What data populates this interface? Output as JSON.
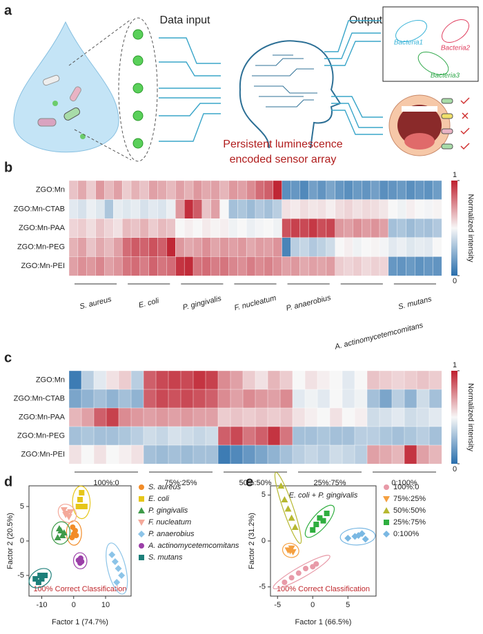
{
  "figure_a": {
    "label": "a",
    "data_input": "Data input",
    "output": "Output",
    "bacteria": [
      "Bacteria1",
      "Bacteria2",
      "Bacteria3"
    ],
    "caption": [
      "Persistent luminescence",
      "encoded sensor array"
    ]
  },
  "chart_data": [
    {
      "type": "heatmap",
      "label": "b",
      "rows": [
        "ZGO:Mn",
        "ZGO:Mn-CTAB",
        "ZGO:Mn-PAA",
        "ZGO:Mn-PEG",
        "ZGO:Mn-PEI"
      ],
      "groups": [
        "S. aureus",
        "E. coli",
        "P. gingivalis",
        "F. nucleatum",
        "P. anaerobius",
        "A. actinomycetemcomitans",
        "S. mutans"
      ],
      "values": [
        [
          0.62,
          0.68,
          0.6,
          0.72,
          0.64,
          0.7,
          0.6,
          0.66,
          0.62,
          0.7,
          0.68,
          0.64,
          0.7,
          0.66,
          0.72,
          0.68,
          0.7,
          0.65,
          0.72,
          0.7,
          0.75,
          0.82,
          0.85,
          0.98,
          0.12,
          0.15,
          0.1,
          0.18,
          0.14,
          0.2,
          0.15,
          0.12,
          0.16,
          0.14,
          0.18,
          0.12,
          0.14,
          0.16,
          0.12,
          0.15,
          0.13,
          0.17
        ],
        [
          0.45,
          0.42,
          0.47,
          0.44,
          0.32,
          0.46,
          0.44,
          0.46,
          0.42,
          0.45,
          0.43,
          0.47,
          0.72,
          0.96,
          0.86,
          0.62,
          0.7,
          0.5,
          0.3,
          0.32,
          0.28,
          0.33,
          0.3,
          0.35,
          0.55,
          0.53,
          0.56,
          0.54,
          0.55,
          0.52,
          0.56,
          0.58,
          0.55,
          0.57,
          0.56,
          0.54,
          0.5,
          0.48,
          0.52,
          0.5,
          0.49,
          0.51
        ],
        [
          0.58,
          0.6,
          0.56,
          0.62,
          0.58,
          0.55,
          0.64,
          0.62,
          0.66,
          0.6,
          0.64,
          0.62,
          0.5,
          0.52,
          0.5,
          0.53,
          0.51,
          0.52,
          0.48,
          0.5,
          0.47,
          0.49,
          0.5,
          0.48,
          0.88,
          0.92,
          0.9,
          0.94,
          0.89,
          0.91,
          0.72,
          0.7,
          0.74,
          0.71,
          0.73,
          0.7,
          0.3,
          0.32,
          0.28,
          0.31,
          0.3,
          0.33
        ],
        [
          0.66,
          0.7,
          0.62,
          0.68,
          0.64,
          0.7,
          0.82,
          0.86,
          0.84,
          0.88,
          0.85,
          0.98,
          0.72,
          0.68,
          0.7,
          0.74,
          0.69,
          0.72,
          0.7,
          0.72,
          0.68,
          0.71,
          0.7,
          0.73,
          0.08,
          0.35,
          0.38,
          0.33,
          0.36,
          0.4,
          0.5,
          0.52,
          0.48,
          0.5,
          0.51,
          0.49,
          0.45,
          0.47,
          0.44,
          0.46,
          0.45,
          0.5
        ],
        [
          0.7,
          0.74,
          0.72,
          0.76,
          0.7,
          0.73,
          0.8,
          0.82,
          0.78,
          0.84,
          0.8,
          0.82,
          0.95,
          0.97,
          0.8,
          0.82,
          0.78,
          0.8,
          0.76,
          0.74,
          0.78,
          0.75,
          0.77,
          0.74,
          0.7,
          0.72,
          0.68,
          0.7,
          0.69,
          0.71,
          0.6,
          0.58,
          0.6,
          0.57,
          0.59,
          0.58,
          0.15,
          0.14,
          0.16,
          0.13,
          0.15,
          0.14
        ]
      ],
      "zlim": [
        0,
        1
      ],
      "zticks": [
        0,
        1
      ],
      "colorbar_label": "Normalized intensity"
    },
    {
      "type": "heatmap",
      "label": "c",
      "rows": [
        "ZGO:Mn",
        "ZGO:Mn-CTAB",
        "ZGO:Mn-PAA",
        "ZGO:Mn-PEG",
        "ZGO:Mn-PEI"
      ],
      "groups": [
        "100%:0",
        "75%:25%",
        "50%:50%",
        "25%:75%",
        "0:100%"
      ],
      "values": [
        [
          0.05,
          0.35,
          0.45,
          0.55,
          0.6,
          0.35,
          0.85,
          0.9,
          0.92,
          0.9,
          0.95,
          0.92,
          0.75,
          0.7,
          0.6,
          0.55,
          0.65,
          0.6,
          0.5,
          0.55,
          0.52,
          0.5,
          0.45,
          0.5,
          0.62,
          0.6,
          0.58,
          0.6,
          0.62,
          0.6
        ],
        [
          0.2,
          0.25,
          0.3,
          0.25,
          0.3,
          0.25,
          0.85,
          0.9,
          0.88,
          0.9,
          0.88,
          0.85,
          0.75,
          0.7,
          0.75,
          0.72,
          0.7,
          0.75,
          0.45,
          0.48,
          0.45,
          0.5,
          0.45,
          0.48,
          0.3,
          0.2,
          0.35,
          0.25,
          0.4,
          0.3
        ],
        [
          0.65,
          0.7,
          0.85,
          0.92,
          0.75,
          0.72,
          0.7,
          0.72,
          0.7,
          0.72,
          0.7,
          0.7,
          0.6,
          0.62,
          0.6,
          0.62,
          0.6,
          0.62,
          0.55,
          0.52,
          0.5,
          0.55,
          0.5,
          0.52,
          0.4,
          0.42,
          0.45,
          0.4,
          0.42,
          0.45
        ],
        [
          0.3,
          0.32,
          0.3,
          0.3,
          0.32,
          0.35,
          0.4,
          0.38,
          0.42,
          0.4,
          0.38,
          0.4,
          0.85,
          0.9,
          0.8,
          0.85,
          0.95,
          0.8,
          0.3,
          0.3,
          0.32,
          0.3,
          0.3,
          0.35,
          0.35,
          0.32,
          0.3,
          0.32,
          0.35,
          0.3
        ],
        [
          0.55,
          0.5,
          0.55,
          0.5,
          0.52,
          0.55,
          0.3,
          0.28,
          0.3,
          0.28,
          0.3,
          0.3,
          0.05,
          0.1,
          0.15,
          0.2,
          0.25,
          0.3,
          0.35,
          0.38,
          0.35,
          0.4,
          0.38,
          0.35,
          0.7,
          0.68,
          0.65,
          0.95,
          0.7,
          0.65
        ]
      ],
      "zlim": [
        0,
        1
      ],
      "zticks": [
        0,
        1
      ],
      "colorbar_label": "Normalized intensity"
    },
    {
      "type": "scatter",
      "label": "d",
      "x_label": "Factor 1 (74.7%)",
      "y_label": "Factor 2 (20.5%)",
      "annotation": "100% Correct Classification",
      "xlim": [
        -14,
        18
      ],
      "xticks": [
        -10,
        0,
        10
      ],
      "ylim": [
        -8,
        8
      ],
      "yticks": [
        -5,
        0,
        5
      ],
      "series": [
        {
          "name": "S. aureus",
          "color": "#f28c28",
          "marker": "circle",
          "x": [
            -0.5,
            0,
            0.5,
            -0.3,
            0.8
          ],
          "y": [
            0.5,
            1,
            1.5,
            2,
            0.8
          ]
        },
        {
          "name": "E. coli",
          "color": "#e6c619",
          "marker": "square",
          "x": [
            1.5,
            2.5,
            3.5,
            2.5,
            2
          ],
          "y": [
            5,
            5,
            5,
            7,
            6
          ]
        },
        {
          "name": "P. gingivalis",
          "color": "#3f9b4a",
          "marker": "triangle",
          "x": [
            -5,
            -4,
            -3.5,
            -4.5,
            -3
          ],
          "y": [
            0.5,
            1.5,
            0.8,
            1.8,
            1.2
          ]
        },
        {
          "name": "F. nucleatum",
          "color": "#f4a99a",
          "marker": "down-triangle",
          "x": [
            -3,
            -2,
            -1.5,
            -2.5,
            -1
          ],
          "y": [
            4.5,
            4,
            3.5,
            3.8,
            4.2
          ]
        },
        {
          "name": "P. anaerobius",
          "color": "#8cc4e8",
          "marker": "diamond",
          "x": [
            12,
            13,
            14,
            15,
            13.5
          ],
          "y": [
            -2,
            -3,
            -4,
            -5,
            -6
          ]
        },
        {
          "name": "A. actinomycetemcomitans",
          "color": "#9b3fa8",
          "marker": "circle",
          "x": [
            1.5,
            2,
            2.5,
            2.2
          ],
          "y": [
            -2.8,
            -3.2,
            -3,
            -2.5
          ]
        },
        {
          "name": "S. mutans",
          "color": "#1d7f7a",
          "marker": "square",
          "x": [
            -12,
            -11,
            -10,
            -9,
            -10.5
          ],
          "y": [
            -5.5,
            -6,
            -5.5,
            -5,
            -5
          ]
        }
      ]
    },
    {
      "type": "scatter",
      "label": "e",
      "x_label": "Factor 1 (66.5%)",
      "y_label": "Factor 2 (31.2%)",
      "annotation": "100% Correct Classification",
      "subtitle": "E. coli + P. gingivalis",
      "xlim": [
        -6,
        9
      ],
      "xticks": [
        -5,
        0,
        5
      ],
      "ylim": [
        -6,
        6
      ],
      "yticks": [
        -5,
        0,
        5
      ],
      "series": [
        {
          "name": "100%:0",
          "color": "#e89aa8",
          "marker": "circle",
          "x": [
            -4,
            -3,
            -2,
            -1,
            0,
            0.5
          ],
          "y": [
            -4.5,
            -4,
            -3.5,
            -3,
            -2.8,
            -2.5
          ]
        },
        {
          "name": "75%:25%",
          "color": "#f5a040",
          "marker": "down-triangle",
          "x": [
            -3.5,
            -3,
            -2.8,
            -3.2
          ],
          "y": [
            -1,
            -0.8,
            -1.2,
            -1.1
          ]
        },
        {
          "name": "50%:50%",
          "color": "#b7b830",
          "marker": "triangle",
          "x": [
            -4.5,
            -4,
            -3.5,
            -3,
            -2.5
          ],
          "y": [
            6,
            4.5,
            3.5,
            2.5,
            1.5
          ]
        },
        {
          "name": "25%:75%",
          "color": "#2fae3f",
          "marker": "square",
          "x": [
            0,
            0.5,
            1,
            1.5,
            2
          ],
          "y": [
            1.2,
            1.8,
            2.5,
            2.2,
            3
          ]
        },
        {
          "name": "0:100%",
          "color": "#7ab8e3",
          "marker": "diamond",
          "x": [
            5,
            6,
            7,
            7.5,
            6.5
          ],
          "y": [
            0.3,
            0.5,
            0.8,
            0.2,
            0.6
          ]
        }
      ]
    }
  ]
}
